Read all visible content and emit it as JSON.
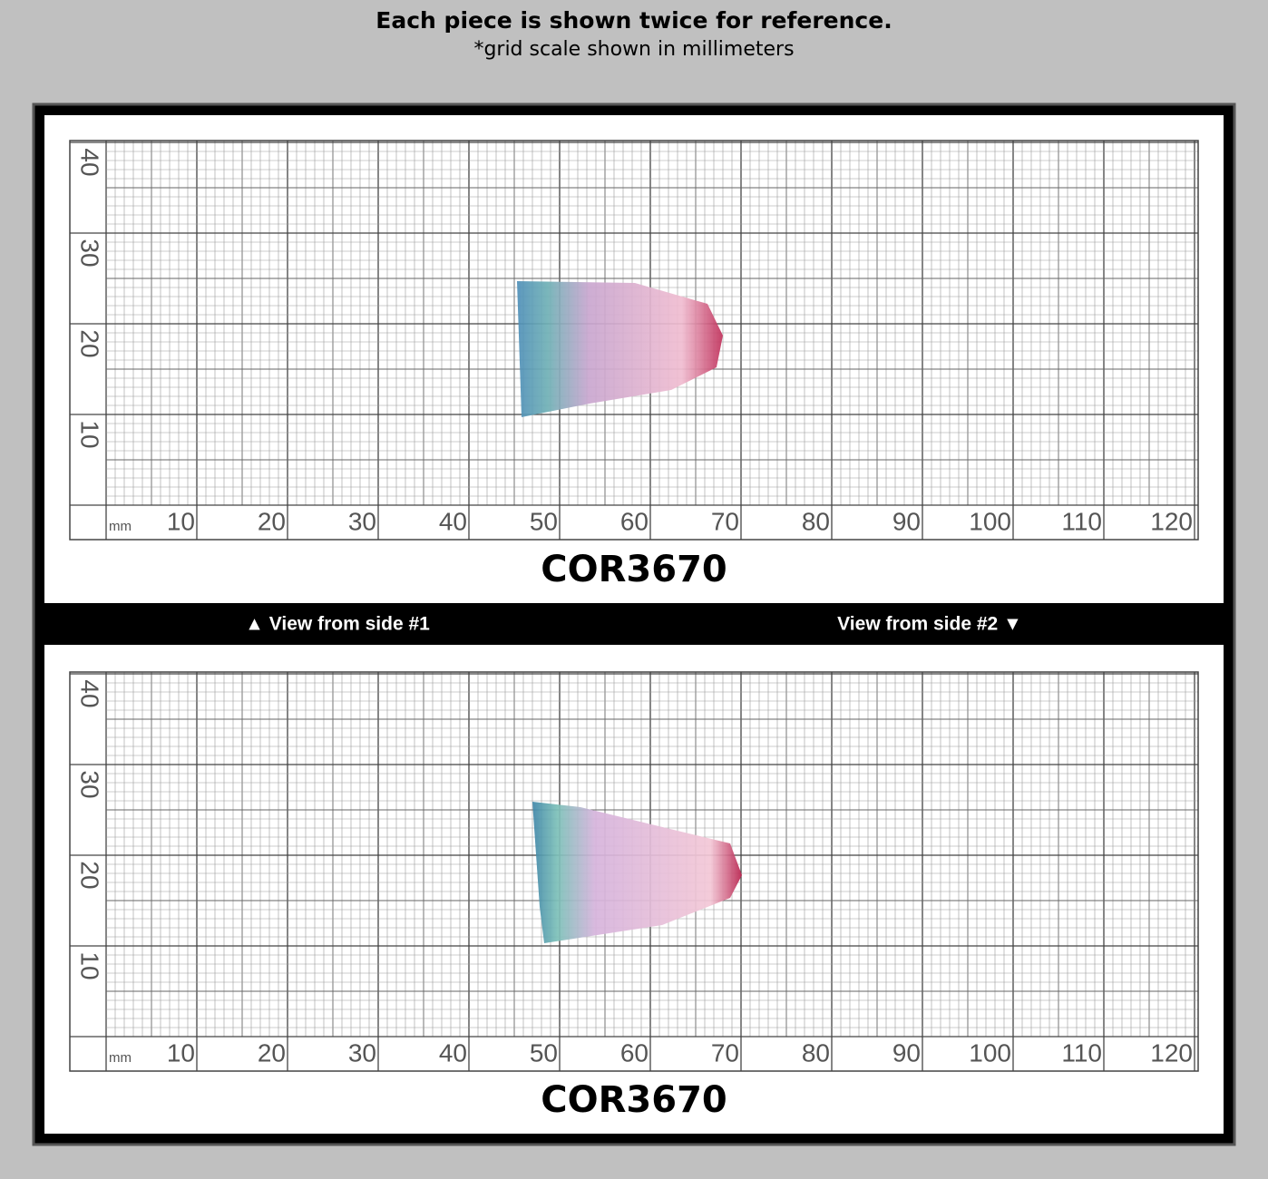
{
  "header": {
    "title": "Each piece is shown twice for reference.",
    "subtitle": "*grid scale shown in millimeters"
  },
  "panels": [
    {
      "unit": "mm",
      "x_labels": [
        10,
        20,
        30,
        40,
        50,
        60,
        70,
        80,
        90,
        100,
        110,
        120
      ],
      "y_labels": [
        10,
        20,
        30,
        40
      ],
      "code": "COR3670"
    },
    {
      "unit": "mm",
      "x_labels": [
        10,
        20,
        30,
        40,
        50,
        60,
        70,
        80,
        90,
        100,
        110,
        120
      ],
      "y_labels": [
        10,
        20,
        30,
        40
      ],
      "code": "COR3670"
    }
  ],
  "side_labels": [
    "▲ View from side #1",
    "View from side #2 ▼"
  ]
}
